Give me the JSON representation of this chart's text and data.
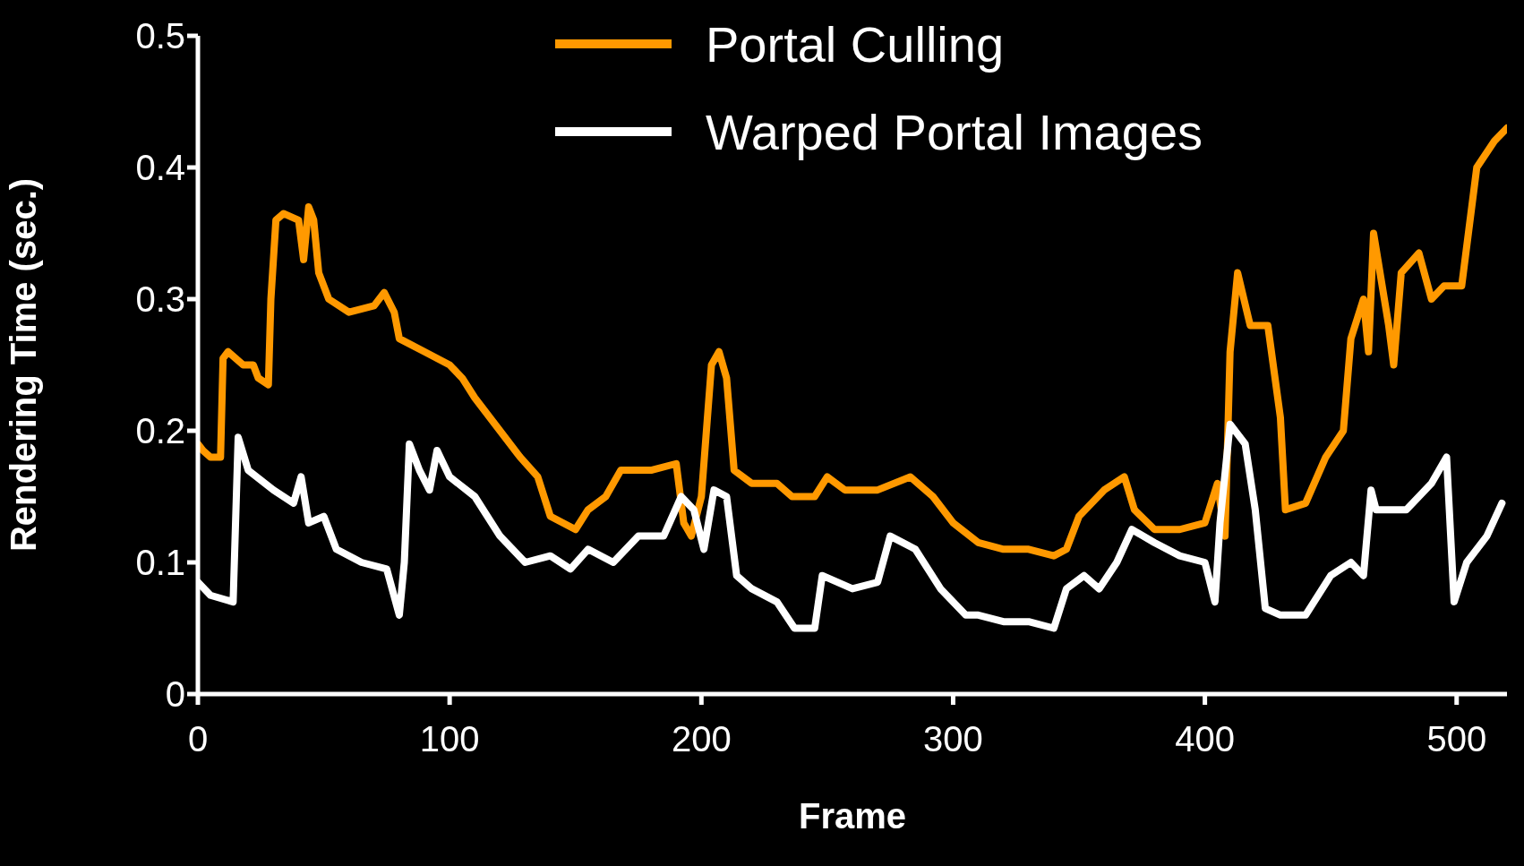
{
  "chart_data": {
    "type": "line",
    "xlabel": "Frame",
    "ylabel": "Rendering Time (sec.)",
    "xlim": [
      0,
      520
    ],
    "xticks": [
      0,
      100,
      200,
      300,
      400,
      500
    ],
    "ylim": [
      0,
      0.5
    ],
    "yticks": [
      0,
      0.1,
      0.2,
      0.3,
      0.4,
      0.5
    ],
    "legend": "top",
    "grid": false,
    "marker": "none",
    "line_style": "solid",
    "series": [
      {
        "name": "Portal Culling",
        "color": "#ff9900",
        "x": [
          0,
          2,
          5,
          9,
          10,
          12,
          18,
          22,
          24,
          28,
          29,
          31,
          34,
          40,
          42,
          44,
          46,
          48,
          52,
          60,
          70,
          74,
          78,
          80,
          90,
          100,
          105,
          110,
          120,
          128,
          135,
          140,
          150,
          155,
          162,
          168,
          180,
          190,
          193,
          196,
          200,
          204,
          207,
          210,
          213,
          220,
          230,
          236,
          245,
          250,
          257,
          270,
          283,
          292,
          300,
          310,
          320,
          330,
          340,
          345,
          350,
          360,
          368,
          372,
          380,
          390,
          400,
          405,
          408,
          410,
          413,
          418,
          425,
          430,
          432,
          440,
          448,
          455,
          458,
          463,
          465,
          467,
          473,
          475,
          478,
          485,
          490,
          495,
          502,
          508,
          515,
          520
        ],
        "values": [
          0.19,
          0.185,
          0.18,
          0.18,
          0.255,
          0.26,
          0.25,
          0.25,
          0.24,
          0.235,
          0.3,
          0.36,
          0.365,
          0.36,
          0.33,
          0.37,
          0.36,
          0.32,
          0.3,
          0.29,
          0.295,
          0.305,
          0.29,
          0.27,
          0.26,
          0.25,
          0.24,
          0.225,
          0.2,
          0.18,
          0.165,
          0.135,
          0.125,
          0.14,
          0.15,
          0.17,
          0.17,
          0.175,
          0.13,
          0.12,
          0.15,
          0.25,
          0.26,
          0.24,
          0.17,
          0.16,
          0.16,
          0.15,
          0.15,
          0.165,
          0.155,
          0.155,
          0.165,
          0.15,
          0.13,
          0.115,
          0.11,
          0.11,
          0.105,
          0.11,
          0.135,
          0.155,
          0.165,
          0.14,
          0.125,
          0.125,
          0.13,
          0.16,
          0.12,
          0.26,
          0.32,
          0.28,
          0.28,
          0.21,
          0.14,
          0.145,
          0.18,
          0.2,
          0.27,
          0.3,
          0.26,
          0.35,
          0.28,
          0.25,
          0.32,
          0.335,
          0.3,
          0.31,
          0.31,
          0.4,
          0.42,
          0.43
        ]
      },
      {
        "name": "Warped Portal Images",
        "color": "#ffffff",
        "x": [
          0,
          5,
          14,
          16,
          20,
          30,
          38,
          41,
          44,
          50,
          55,
          65,
          75,
          80,
          82,
          84,
          88,
          92,
          95,
          100,
          110,
          120,
          130,
          140,
          148,
          155,
          165,
          175,
          185,
          192,
          197,
          201,
          205,
          210,
          214,
          220,
          230,
          237,
          245,
          248,
          260,
          270,
          275,
          285,
          295,
          305,
          310,
          320,
          330,
          340,
          345,
          352,
          358,
          365,
          371,
          380,
          390,
          400,
          404,
          406,
          410,
          416,
          420,
          424,
          430,
          440,
          450,
          458,
          463,
          466,
          468,
          480,
          490,
          496,
          499,
          504,
          512,
          518
        ],
        "values": [
          0.085,
          0.075,
          0.07,
          0.195,
          0.17,
          0.155,
          0.145,
          0.165,
          0.13,
          0.135,
          0.11,
          0.1,
          0.095,
          0.06,
          0.1,
          0.19,
          0.17,
          0.155,
          0.185,
          0.165,
          0.15,
          0.12,
          0.1,
          0.105,
          0.095,
          0.11,
          0.1,
          0.12,
          0.12,
          0.15,
          0.14,
          0.11,
          0.155,
          0.15,
          0.09,
          0.08,
          0.07,
          0.05,
          0.05,
          0.09,
          0.08,
          0.085,
          0.12,
          0.11,
          0.08,
          0.06,
          0.06,
          0.055,
          0.055,
          0.05,
          0.08,
          0.09,
          0.08,
          0.1,
          0.125,
          0.115,
          0.105,
          0.1,
          0.07,
          0.13,
          0.205,
          0.19,
          0.14,
          0.065,
          0.06,
          0.06,
          0.09,
          0.1,
          0.09,
          0.155,
          0.14,
          0.14,
          0.16,
          0.18,
          0.07,
          0.1,
          0.12,
          0.145
        ]
      }
    ]
  }
}
